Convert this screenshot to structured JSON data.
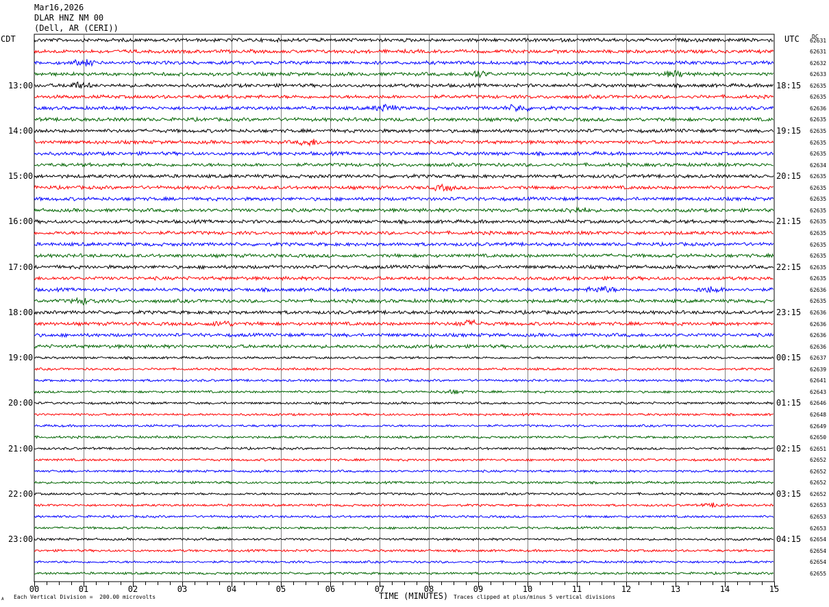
{
  "header": {
    "date": "Mar16,2026",
    "station": "DLAR HNZ NM 00",
    "location": "(Dell, AR (CERI))"
  },
  "labels": {
    "left_zone": "CDT",
    "right_zone": "UTC",
    "dc": "DC",
    "x_title": "TIME (MINUTES)",
    "scale_note": "Each Vertical Division =  200.00 microvolts",
    "clip_note": "Traces clipped at plus/minus 5 vertical divisions",
    "corner_mark": "A"
  },
  "colors": {
    "black": "#000000",
    "red": "#ff0000",
    "blue": "#0000ff",
    "green": "#006400",
    "grid": "#808080"
  },
  "chart_data": {
    "type": "line",
    "title": "DLAR HNZ NM 00",
    "xlabel": "TIME (MINUTES)",
    "x_ticks": [
      "00",
      "01",
      "02",
      "03",
      "04",
      "05",
      "06",
      "07",
      "08",
      "09",
      "10",
      "11",
      "12",
      "13",
      "14",
      "15"
    ],
    "xlim": [
      0,
      15
    ],
    "trace_colors_cycle": [
      "black",
      "red",
      "blue",
      "green"
    ],
    "left_hour_labels": [
      {
        "trace": 4,
        "text": "13:00"
      },
      {
        "trace": 8,
        "text": "14:00"
      },
      {
        "trace": 12,
        "text": "15:00"
      },
      {
        "trace": 16,
        "text": "16:00"
      },
      {
        "trace": 20,
        "text": "17:00"
      },
      {
        "trace": 24,
        "text": "18:00"
      },
      {
        "trace": 28,
        "text": "19:00"
      },
      {
        "trace": 32,
        "text": "20:00"
      },
      {
        "trace": 36,
        "text": "21:00"
      },
      {
        "trace": 40,
        "text": "22:00"
      },
      {
        "trace": 44,
        "text": "23:00"
      }
    ],
    "right_hour_labels": [
      {
        "trace": 4,
        "text": "18:15"
      },
      {
        "trace": 8,
        "text": "19:15"
      },
      {
        "trace": 12,
        "text": "20:15"
      },
      {
        "trace": 16,
        "text": "21:15"
      },
      {
        "trace": 20,
        "text": "22:15"
      },
      {
        "trace": 24,
        "text": "23:15"
      },
      {
        "trace": 28,
        "text": "00:15"
      },
      {
        "trace": 32,
        "text": "01:15"
      },
      {
        "trace": 36,
        "text": "02:15"
      },
      {
        "trace": 40,
        "text": "03:15"
      },
      {
        "trace": 44,
        "text": "04:15"
      }
    ],
    "dc_offsets": [
      "62631",
      "62631",
      "62632",
      "62633",
      "62635",
      "62635",
      "62636",
      "62635",
      "62635",
      "62635",
      "62635",
      "62634",
      "62635",
      "62635",
      "62635",
      "62635",
      "62635",
      "62635",
      "62635",
      "62635",
      "62635",
      "62635",
      "62636",
      "62635",
      "62636",
      "62636",
      "62636",
      "62636",
      "62637",
      "62639",
      "62641",
      "62643",
      "62646",
      "62648",
      "62649",
      "62650",
      "62651",
      "62652",
      "62652",
      "62652",
      "62652",
      "62653",
      "62653",
      "62653",
      "62654",
      "62654",
      "62654",
      "62655"
    ],
    "events": [
      {
        "trace": 2,
        "minute": 1.0,
        "amp": 1.4
      },
      {
        "trace": 3,
        "minute": 9.0,
        "amp": 1.6
      },
      {
        "trace": 3,
        "minute": 13.0,
        "amp": 1.4
      },
      {
        "trace": 4,
        "minute": 0.9,
        "amp": 1.6
      },
      {
        "trace": 6,
        "minute": 7.1,
        "amp": 1.8
      },
      {
        "trace": 6,
        "minute": 9.8,
        "amp": 1.6
      },
      {
        "trace": 9,
        "minute": 5.6,
        "amp": 1.5
      },
      {
        "trace": 13,
        "minute": 8.3,
        "amp": 1.3
      },
      {
        "trace": 15,
        "minute": 11.0,
        "amp": 1.3
      },
      {
        "trace": 22,
        "minute": 11.5,
        "amp": 1.9
      },
      {
        "trace": 22,
        "minute": 13.7,
        "amp": 1.5
      },
      {
        "trace": 23,
        "minute": 1.0,
        "amp": 1.4
      },
      {
        "trace": 25,
        "minute": 3.8,
        "amp": 1.3
      },
      {
        "trace": 25,
        "minute": 8.8,
        "amp": 1.6
      },
      {
        "trace": 31,
        "minute": 8.5,
        "amp": 1.3
      },
      {
        "trace": 41,
        "minute": 13.8,
        "amp": 1.4
      }
    ]
  }
}
